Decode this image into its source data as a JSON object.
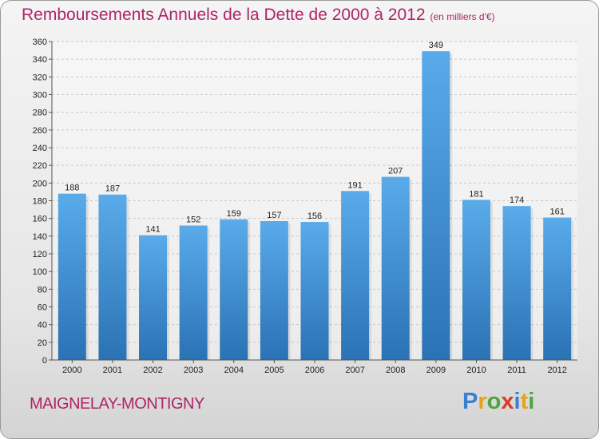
{
  "header": {
    "title": "Remboursements Annuels de la Dette de 2000 à 2012",
    "unit": "(en milliers d'€)"
  },
  "footer": {
    "city": "MAIGNELAY-MONTIGNY",
    "logo": [
      "P",
      "r",
      "o",
      "x",
      "i",
      "t",
      "i"
    ],
    "logo_colors": [
      "#3a7fd0",
      "#e8a21a",
      "#4ca63a",
      "#d63a2a",
      "#3a7fd0",
      "#e8a21a",
      "#4ca63a"
    ]
  },
  "chart_data": {
    "type": "bar",
    "title": "Remboursements Annuels de la Dette de 2000 à 2012",
    "xlabel": "",
    "ylabel": "",
    "categories": [
      "2000",
      "2001",
      "2002",
      "2003",
      "2004",
      "2005",
      "2006",
      "2007",
      "2008",
      "2009",
      "2010",
      "2011",
      "2012"
    ],
    "values": [
      188,
      187,
      141,
      152,
      159,
      157,
      156,
      191,
      207,
      349,
      181,
      174,
      161
    ],
    "ylim": [
      0,
      360
    ],
    "ytick_step": 20,
    "grid": true,
    "bar_color_top": "#5aabea",
    "bar_color_bottom": "#2a72b4"
  }
}
